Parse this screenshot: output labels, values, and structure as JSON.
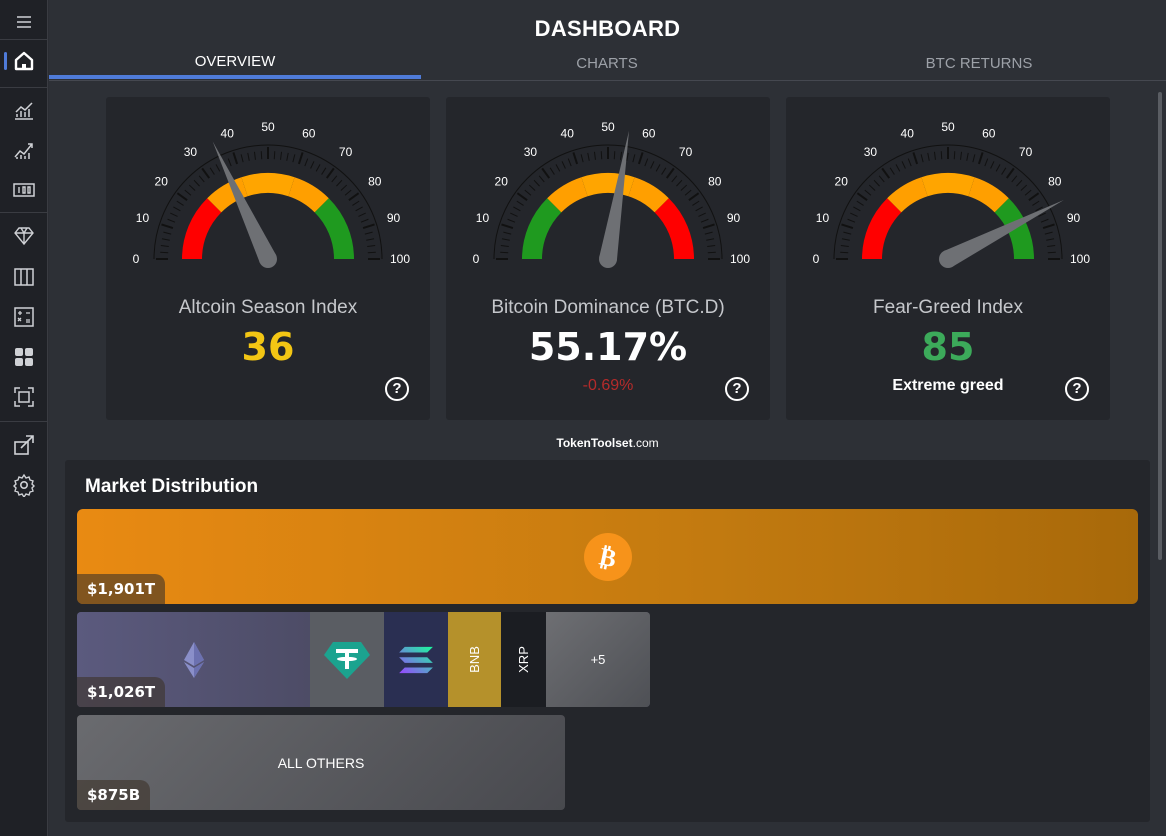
{
  "app": {
    "title": "DASHBOARD"
  },
  "sidebar": {
    "icons": [
      "menu-icon",
      "home-icon",
      "line-chart-icon",
      "trend-chart-icon",
      "counter-icon",
      "diamond-icon",
      "columns-icon",
      "calculator-icon",
      "grid-icon",
      "focus-icon",
      "external-link-icon",
      "settings-icon"
    ],
    "active": "home-icon"
  },
  "tabs": [
    {
      "label": "OVERVIEW",
      "active": true
    },
    {
      "label": "CHARTS",
      "active": false
    },
    {
      "label": "BTC RETURNS",
      "active": false
    }
  ],
  "gauges": [
    {
      "title": "Altcoin Season Index",
      "value": "36",
      "value_color": "#f3c614",
      "needle": 36,
      "sub": "",
      "sub_color": "",
      "bands": [
        {
          "from": 0,
          "to": 25,
          "color": "#ff0000"
        },
        {
          "from": 25,
          "to": 40,
          "color": "#ff9f00"
        },
        {
          "from": 40,
          "to": 60,
          "color": "#ffa500"
        },
        {
          "from": 60,
          "to": 75,
          "color": "#ff9f00"
        },
        {
          "from": 75,
          "to": 100,
          "color": "#1f9a1f"
        }
      ]
    },
    {
      "title": "Bitcoin Dominance (BTC.D)",
      "value": "55.17%",
      "value_color": "#ffffff",
      "needle": 55.17,
      "sub": "-0.69%",
      "sub_color": "#b52b2b",
      "bands": [
        {
          "from": 0,
          "to": 25,
          "color": "#1f9a1f"
        },
        {
          "from": 25,
          "to": 40,
          "color": "#ff9f00"
        },
        {
          "from": 40,
          "to": 60,
          "color": "#ffa500"
        },
        {
          "from": 60,
          "to": 75,
          "color": "#ff9f00"
        },
        {
          "from": 75,
          "to": 100,
          "color": "#ff0000"
        }
      ]
    },
    {
      "title": "Fear-Greed Index",
      "value": "85",
      "value_color": "#3caa5a",
      "needle": 85,
      "sub": "Extreme greed",
      "sub_color": "#ffffff",
      "bands": [
        {
          "from": 0,
          "to": 25,
          "color": "#ff0000"
        },
        {
          "from": 25,
          "to": 40,
          "color": "#ff9f00"
        },
        {
          "from": 40,
          "to": 60,
          "color": "#ffa500"
        },
        {
          "from": 60,
          "to": 75,
          "color": "#ff9f00"
        },
        {
          "from": 75,
          "to": 100,
          "color": "#1f9a1f"
        }
      ]
    }
  ],
  "gauge_ticks": [
    "0",
    "10",
    "20",
    "30",
    "40",
    "50",
    "60",
    "70",
    "80",
    "90",
    "100"
  ],
  "help_label": "?",
  "brand": {
    "bold": "TokenToolset",
    "suffix": ".com"
  },
  "market": {
    "title": "Market Distribution",
    "rows": [
      {
        "amount": "$1,901T",
        "icon": "bitcoin-icon"
      },
      {
        "amount": "$1,026T",
        "icon": "ethereum-icon",
        "cells": [
          {
            "name": "tether-icon",
            "label": ""
          },
          {
            "name": "solana-icon",
            "label": ""
          },
          {
            "name": "bnb-cell",
            "label": "BNB"
          },
          {
            "name": "xrp-cell",
            "label": "XRP"
          },
          {
            "name": "more-cell",
            "label": "+5"
          }
        ]
      },
      {
        "amount": "$875B",
        "label": "ALL OTHERS"
      }
    ]
  }
}
